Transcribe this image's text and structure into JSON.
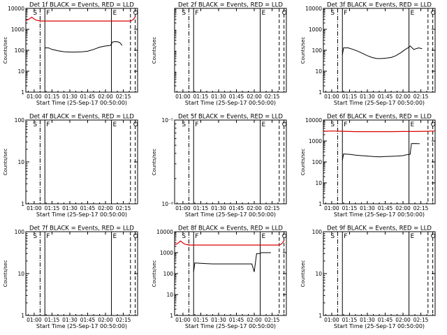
{
  "x_axis": {
    "label": "Start Time (25-Sep-17 00:50:00)",
    "tick_labels": [
      "01:00",
      "01:15",
      "01:30",
      "01:45",
      "02:00",
      "02:15"
    ],
    "tick_minutes": [
      10,
      25,
      40,
      55,
      70,
      85
    ],
    "range_minutes": [
      3,
      97
    ]
  },
  "y_axis_label": "Counts/sec",
  "marker_letters": {
    "S": "S",
    "F": "F",
    "E": "E",
    "O": "O"
  },
  "event_lines_minutes": {
    "dashdot": 15,
    "solid": 19,
    "solid2": 75,
    "dash1": 91,
    "dash2": 95
  },
  "colors": {
    "events": "#000000",
    "lld": "#dd0000"
  },
  "chart_data": [
    {
      "type": "line",
      "title": "Det 1f BLACK = Events, RED = LLD",
      "xlabel": "Start Time (25-Sep-17 00:50:00)",
      "ylabel": "Counts/sec",
      "yscale": "log",
      "ylim": [
        1,
        10000
      ],
      "ytick_labels": [
        "1",
        "10",
        "100",
        "1000",
        "10000"
      ],
      "yticks": [
        1,
        10,
        100,
        1000,
        10000
      ],
      "series": [
        {
          "name": "LLD",
          "color": "#dd0000",
          "x": [
            3,
            5,
            8,
            10,
            12,
            14,
            16,
            20,
            30,
            40,
            50,
            60,
            70,
            80,
            90,
            92,
            94,
            95
          ],
          "y": [
            2600,
            2900,
            3800,
            3100,
            2700,
            2600,
            2500,
            2500,
            2500,
            2500,
            2500,
            2500,
            2500,
            2500,
            2500,
            2600,
            3200,
            4000
          ]
        },
        {
          "name": "Events",
          "color": "#000000",
          "x": [
            19,
            22,
            25,
            30,
            35,
            40,
            45,
            50,
            55,
            60,
            65,
            70,
            74,
            76,
            78,
            80,
            82,
            84
          ],
          "y": [
            130,
            130,
            110,
            95,
            85,
            82,
            82,
            84,
            90,
            110,
            140,
            160,
            170,
            250,
            260,
            255,
            230,
            170
          ]
        }
      ]
    },
    {
      "type": "line",
      "title": "Det 2f BLACK = Events, RED = LLD",
      "xlabel": "Start Time (25-Sep-17 00:50:00)",
      "ylabel": "Counts/sec",
      "yscale": "log",
      "ylim": [
        1,
        10000
      ],
      "ytick_labels": [],
      "yticks": [],
      "series": []
    },
    {
      "type": "line",
      "title": "Det 3f BLACK = Events, RED = LLD",
      "xlabel": "Start Time (25-Sep-17 00:50:00)",
      "ylabel": "Counts/sec",
      "yscale": "log",
      "ylim": [
        1,
        10000
      ],
      "ytick_labels": [
        "1",
        "10",
        "100",
        "1000",
        "10000"
      ],
      "yticks": [
        1,
        10,
        100,
        1000,
        10000
      ],
      "series": [
        {
          "name": "Events",
          "color": "#000000",
          "x": [
            19,
            20,
            24,
            28,
            32,
            36,
            40,
            44,
            48,
            52,
            56,
            60,
            64,
            68,
            72,
            75,
            76,
            79,
            83,
            86
          ],
          "y": [
            60,
            130,
            130,
            110,
            90,
            70,
            55,
            45,
            40,
            40,
            42,
            45,
            55,
            75,
            110,
            140,
            160,
            110,
            130,
            120
          ]
        }
      ]
    },
    {
      "type": "line",
      "title": "Det 4f BLACK = Events, RED = LLD",
      "xlabel": "Start Time (25-Sep-17 00:50:00)",
      "ylabel": "Counts/sec",
      "yscale": "log",
      "ylim": [
        1,
        100
      ],
      "ytick_labels": [
        "1",
        "10",
        "100"
      ],
      "yticks": [
        1,
        10,
        100
      ],
      "series": []
    },
    {
      "type": "line",
      "title": "Det 5f BLACK = Events, RED = LLD",
      "xlabel": "Start Time (25-Sep-17 00:50:00)",
      "ylabel": "Counts/sec",
      "yscale": "log",
      "ylim": [
        1e-06,
        1e-05
      ],
      "ytick_labels": [
        "10⁻⁶",
        "10⁻⁵"
      ],
      "yticks": [
        1e-06,
        1e-05
      ],
      "series": []
    },
    {
      "type": "line",
      "title": "Det 6f BLACK = Events, RED = LLD",
      "xlabel": "Start Time (25-Sep-17 00:50:00)",
      "ylabel": "Counts/sec",
      "yscale": "log",
      "ylim": [
        1,
        10000
      ],
      "ytick_labels": [
        "1",
        "10",
        "100",
        "1000",
        "10000"
      ],
      "yticks": [
        1,
        10,
        100,
        1000,
        10000
      ],
      "series": [
        {
          "name": "LLD",
          "color": "#dd0000",
          "x": [
            3,
            10,
            20,
            30,
            40,
            50,
            60,
            70,
            80,
            90,
            97
          ],
          "y": [
            2900,
            3000,
            2900,
            2800,
            2800,
            2800,
            2800,
            2850,
            2850,
            2900,
            3000
          ]
        },
        {
          "name": "Events",
          "color": "#000000",
          "x": [
            19,
            20,
            25,
            30,
            35,
            40,
            45,
            50,
            55,
            60,
            65,
            70,
            73,
            76,
            77,
            80,
            84
          ],
          "y": [
            120,
            240,
            230,
            210,
            200,
            190,
            180,
            175,
            180,
            185,
            190,
            200,
            220,
            230,
            750,
            760,
            740
          ]
        }
      ]
    },
    {
      "type": "line",
      "title": "Det 7f BLACK = Events, RED = LLD",
      "xlabel": "Start Time (25-Sep-17 00:50:00)",
      "ylabel": "Counts/sec",
      "yscale": "log",
      "ylim": [
        1,
        100
      ],
      "ytick_labels": [
        "1",
        "10",
        "100"
      ],
      "yticks": [
        1,
        10,
        100
      ],
      "series": []
    },
    {
      "type": "line",
      "title": "Det 8f BLACK = Events, RED = LLD",
      "xlabel": "Start Time (25-Sep-17 00:50:00)",
      "ylabel": "Counts/sec",
      "yscale": "log",
      "ylim": [
        1,
        10000
      ],
      "ytick_labels": [
        "1",
        "10",
        "100",
        "1000",
        "10000"
      ],
      "yticks": [
        1,
        10,
        100,
        1000,
        10000
      ],
      "series": [
        {
          "name": "LLD",
          "color": "#dd0000",
          "x": [
            3,
            5,
            8,
            10,
            12,
            14,
            16,
            20,
            30,
            40,
            50,
            60,
            70,
            80,
            90,
            92,
            94,
            95
          ],
          "y": [
            2400,
            2600,
            3600,
            2900,
            2500,
            2400,
            2300,
            2300,
            2300,
            2300,
            2300,
            2300,
            2300,
            2300,
            2300,
            2400,
            3000,
            3800
          ]
        },
        {
          "name": "Events",
          "color": "#000000",
          "x": [
            19,
            20,
            25,
            30,
            35,
            40,
            45,
            50,
            55,
            60,
            65,
            68,
            70,
            72,
            74,
            76,
            78,
            80,
            82,
            84
          ],
          "y": [
            120,
            320,
            310,
            300,
            290,
            290,
            290,
            290,
            290,
            290,
            290,
            290,
            120,
            900,
            900,
            1000,
            1000,
            1000,
            1000,
            1000
          ]
        }
      ]
    },
    {
      "type": "line",
      "title": "Det 9f BLACK = Events, RED = LLD",
      "xlabel": "Start Time (25-Sep-17 00:50:00)",
      "ylabel": "Counts/sec",
      "yscale": "log",
      "ylim": [
        1,
        100
      ],
      "ytick_labels": [
        "1",
        "10",
        "100"
      ],
      "yticks": [
        1,
        10,
        100
      ],
      "series": []
    }
  ]
}
